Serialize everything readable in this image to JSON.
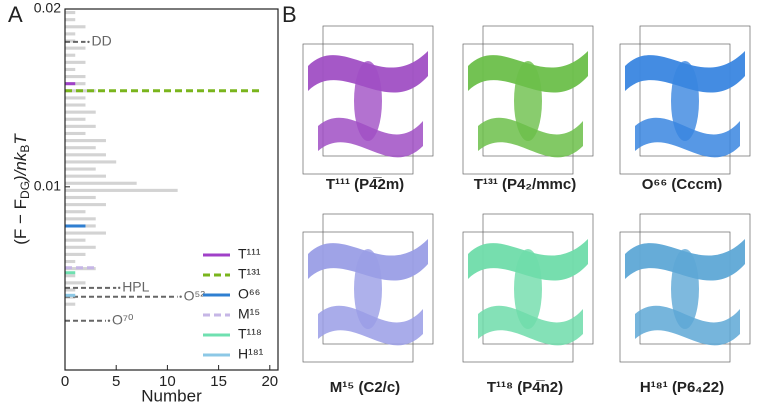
{
  "panel_labels": [
    "A",
    "B"
  ],
  "chart_data": {
    "type": "hbar-histogram",
    "x_label": "Number",
    "y_label_parts": [
      "(F − F",
      "DG",
      ")/nk",
      "B",
      "T"
    ],
    "xlim": [
      0,
      20.8
    ],
    "xticks": [
      0,
      5,
      10,
      15,
      20
    ],
    "ylim": [
      -0.0003,
      0.02
    ],
    "yticks": [
      0.01,
      0.02
    ],
    "bar_color": "#d3d3d3",
    "bins": [
      0.0,
      0.0004,
      0.0008,
      0.0012,
      0.0016,
      0.002,
      0.0024,
      0.0028,
      0.0032,
      0.0036,
      0.004,
      0.0044,
      0.0048,
      0.0052,
      0.0056,
      0.006,
      0.0064,
      0.0068,
      0.0072,
      0.0076,
      0.008,
      0.0084,
      0.0088,
      0.0092,
      0.0096,
      0.01,
      0.0104,
      0.0108,
      0.0112,
      0.0116,
      0.012,
      0.0124,
      0.0128,
      0.0132,
      0.0136,
      0.014,
      0.0144,
      0.0148,
      0.0152,
      0.0156,
      0.016,
      0.0164,
      0.0168,
      0.0172,
      0.0176,
      0.018,
      0.0184,
      0.0188,
      0.0192,
      0.0196,
      0.02
    ],
    "counts": [
      0,
      0,
      0,
      0,
      0,
      0,
      0,
      0,
      1,
      1,
      1,
      2,
      1,
      3,
      1,
      2,
      3,
      2,
      4,
      3,
      3,
      2,
      4,
      3,
      11,
      7,
      4,
      3,
      5,
      4,
      3,
      4,
      2,
      3,
      2,
      3,
      2,
      2,
      3,
      2,
      2,
      1,
      2,
      1,
      2,
      1,
      1,
      2,
      1,
      1
    ],
    "series": [
      {
        "name": "T¹¹¹",
        "color": "#a040c8",
        "dashed": false,
        "energy": 0.0158,
        "count": 1
      },
      {
        "name": "T¹³¹",
        "color": "#7ab51d",
        "dashed": true,
        "energy": 0.0154,
        "count": 19
      },
      {
        "name": "O⁶⁶",
        "color": "#2f7fd1",
        "dashed": false,
        "energy": 0.0078,
        "count": 2
      },
      {
        "name": "M¹⁵",
        "color": "#c6b6e6",
        "dashed": true,
        "energy": 0.00545,
        "count": 3
      },
      {
        "name": "T¹¹⁸",
        "color": "#6fe0b0",
        "dashed": false,
        "energy": 0.00517,
        "count": 1
      },
      {
        "name": "H¹⁸¹",
        "color": "#8cc8e6",
        "dashed": false,
        "energy": 0.0039,
        "count": 1
      }
    ],
    "references": [
      {
        "label": "DD",
        "energy": 0.01815,
        "count": 2
      },
      {
        "label": "HPL",
        "energy": 0.00432,
        "count": 5
      },
      {
        "label": "O⁵²",
        "energy": 0.00382,
        "count": 11
      },
      {
        "label": "O⁷⁰",
        "energy": 0.00247,
        "count": 4
      }
    ],
    "reference_color": "#666666"
  },
  "structures": [
    {
      "caption": "T¹¹¹ (P4̅2m)",
      "color": "#a04fc4"
    },
    {
      "caption": "T¹³¹ (P4₂/mmc)",
      "color": "#6cbf4a"
    },
    {
      "caption": "O⁶⁶ (Cccm)",
      "color": "#3a86e0"
    },
    {
      "caption": "M¹⁵ (C2/c)",
      "color": "#9a9ee6"
    },
    {
      "caption": "T¹¹⁸ (P4̅n2)",
      "color": "#6fdcaa"
    },
    {
      "caption": "H¹⁸¹ (P6₄22)",
      "color": "#5ea8d6"
    }
  ]
}
